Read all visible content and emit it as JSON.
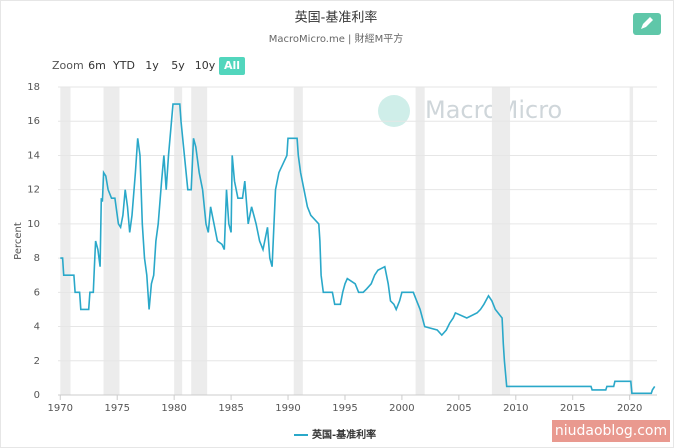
{
  "chart_data": {
    "type": "line",
    "title": "英国-基准利率",
    "subtitle": "MacroMicro.me | 財經M平方",
    "y_label": "Percent",
    "watermark": "MacroMicro",
    "site_mark": "niudaoblog.com",
    "zoom": {
      "label": "Zoom",
      "buttons": [
        "6m",
        "YTD",
        "1y",
        "5y",
        "10y",
        "All"
      ],
      "active": 5
    },
    "xlim": [
      1969.8,
      2022.4
    ],
    "xticks": [
      1970,
      1975,
      1980,
      1985,
      1990,
      1995,
      2000,
      2005,
      2010,
      2015,
      2020
    ],
    "ylim": [
      0,
      18
    ],
    "yticks": [
      0,
      2,
      4,
      6,
      8,
      10,
      12,
      14,
      16,
      18
    ],
    "grid": true,
    "recessions": [
      [
        1970.0,
        1970.9
      ],
      [
        1973.8,
        1975.2
      ],
      [
        1980.0,
        1980.7
      ],
      [
        1981.5,
        1982.9
      ],
      [
        1990.5,
        1991.3
      ],
      [
        2001.2,
        2002.0
      ],
      [
        2007.9,
        2009.5
      ],
      [
        2020.0,
        2020.3
      ]
    ],
    "series": [
      {
        "name": "英国-基准利率",
        "color": "#2aa8c9",
        "x": [
          1970.0,
          1970.2,
          1970.3,
          1971.2,
          1971.3,
          1971.7,
          1971.8,
          1972.5,
          1972.6,
          1972.9,
          1973.0,
          1973.1,
          1973.3,
          1973.5,
          1973.6,
          1973.7,
          1973.8,
          1974.0,
          1974.2,
          1974.5,
          1974.8,
          1975.1,
          1975.3,
          1975.5,
          1975.7,
          1975.9,
          1976.1,
          1976.3,
          1976.6,
          1976.8,
          1977.0,
          1977.2,
          1977.4,
          1977.6,
          1977.8,
          1978.0,
          1978.2,
          1978.4,
          1978.6,
          1978.9,
          1979.1,
          1979.3,
          1979.5,
          1979.9,
          1980.5,
          1980.6,
          1980.9,
          1981.2,
          1981.5,
          1981.7,
          1981.9,
          1982.2,
          1982.5,
          1982.8,
          1983.0,
          1983.2,
          1983.5,
          1983.8,
          1984.2,
          1984.4,
          1984.6,
          1984.8,
          1985.0,
          1985.1,
          1985.3,
          1985.6,
          1986.0,
          1986.2,
          1986.5,
          1986.8,
          1987.2,
          1987.5,
          1987.8,
          1988.2,
          1988.4,
          1988.6,
          1988.9,
          1989.2,
          1989.9,
          1990.0,
          1990.8,
          1990.9,
          1991.1,
          1991.4,
          1991.7,
          1992.0,
          1992.7,
          1992.8,
          1992.9,
          1993.1,
          1993.9,
          1994.1,
          1994.6,
          1994.8,
          1995.0,
          1995.2,
          1995.9,
          1996.2,
          1996.6,
          1996.9,
          1997.3,
          1997.6,
          1997.9,
          1998.5,
          1998.8,
          1999.0,
          1999.3,
          1999.5,
          1999.8,
          2000.0,
          2001.0,
          2001.3,
          2001.6,
          2001.8,
          2002.0,
          2003.1,
          2003.5,
          2003.9,
          2004.2,
          2004.5,
          2004.7,
          2005.7,
          2006.6,
          2006.9,
          2007.2,
          2007.6,
          2007.9,
          2008.2,
          2008.8,
          2008.9,
          2009.0,
          2009.2,
          2016.6,
          2016.7,
          2017.9,
          2018.0,
          2018.6,
          2018.7,
          2020.1,
          2020.2,
          2021.9,
          2022.0,
          2022.2
        ],
        "values": [
          8,
          8,
          7,
          7,
          6,
          6,
          5,
          5,
          6,
          6,
          7.5,
          9,
          8.5,
          7.5,
          11.5,
          11.3,
          13,
          12.8,
          12,
          11.5,
          11.5,
          10,
          9.8,
          10.5,
          12,
          11,
          9.5,
          10.5,
          13,
          15,
          14,
          10,
          8,
          7,
          5,
          6.5,
          7,
          9,
          10,
          12.5,
          14,
          12,
          14,
          17,
          17,
          16,
          14,
          12,
          12,
          15,
          14.5,
          13,
          12,
          10,
          9.5,
          11,
          10,
          9,
          8.8,
          8.5,
          12,
          10,
          9.5,
          14,
          12.5,
          11.5,
          11.5,
          12.5,
          10,
          11,
          10,
          9,
          8.5,
          9.8,
          8,
          7.5,
          12,
          13,
          14,
          15,
          15,
          14,
          13,
          12,
          11,
          10.5,
          10,
          9,
          7,
          6,
          6,
          5.3,
          5.3,
          6,
          6.5,
          6.8,
          6.5,
          6,
          6,
          6.2,
          6.5,
          7,
          7.3,
          7.5,
          6.5,
          5.5,
          5.3,
          5,
          5.5,
          6,
          6,
          5.5,
          5,
          4.5,
          4,
          3.8,
          3.5,
          3.8,
          4.2,
          4.5,
          4.8,
          4.5,
          4.8,
          5,
          5.3,
          5.8,
          5.5,
          5,
          4.5,
          3,
          2,
          0.5,
          0.5,
          0.3,
          0.3,
          0.5,
          0.5,
          0.8,
          0.8,
          0.1,
          0.1,
          0.3,
          0.5
        ]
      }
    ]
  }
}
